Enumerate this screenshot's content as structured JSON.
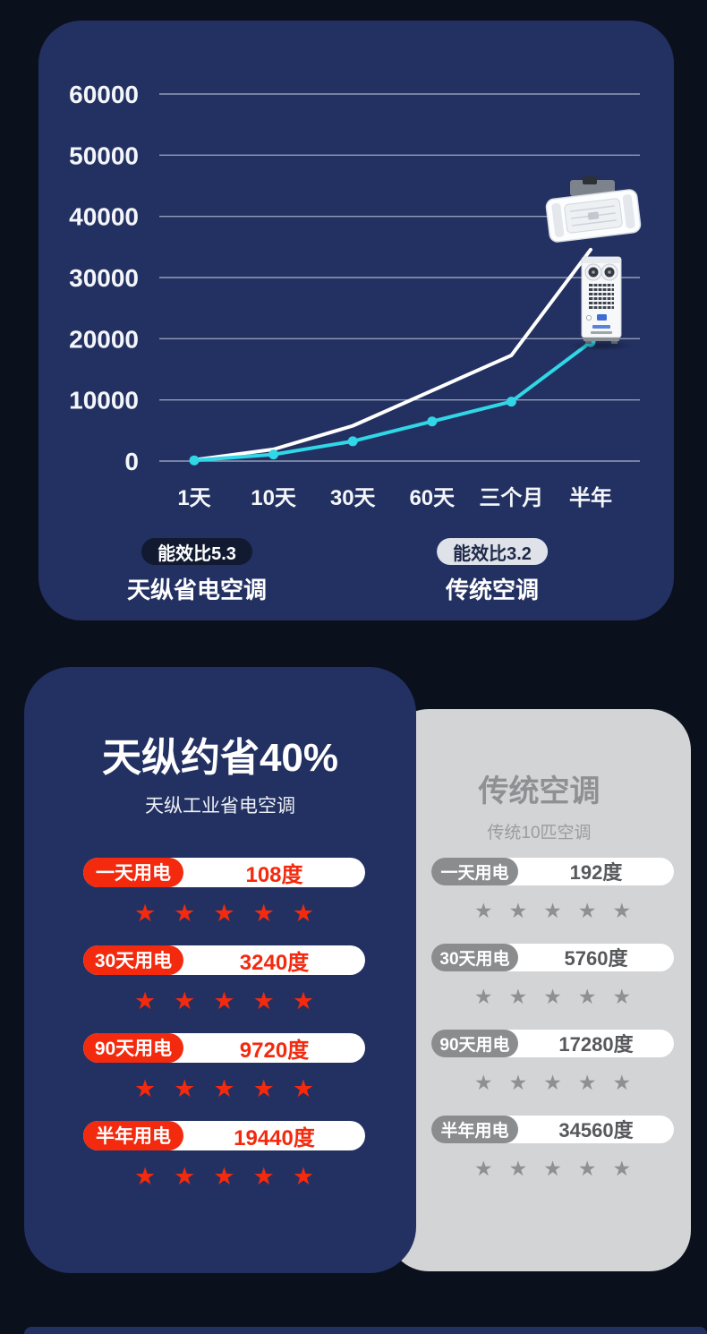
{
  "colors": {
    "page_background": "#0b101d",
    "card_navy": "#233162",
    "card_gray": "#d3d4d6",
    "accent_red": "#f32a0e",
    "accent_cyan": "#30d7e6",
    "line_white": "#ffffff"
  },
  "chart_data": {
    "type": "line",
    "title": "",
    "categories": [
      "1天",
      "10天",
      "30天",
      "60天",
      "三个月",
      "半年"
    ],
    "series": [
      {
        "name": "天纵省电空调",
        "efficiency_badge": "能效比5.3",
        "color": "#30d7e6",
        "markers": true,
        "values": [
          108,
          1080,
          3240,
          6480,
          9720,
          19440
        ]
      },
      {
        "name": "传统空调",
        "efficiency_badge": "能效比3.2",
        "color": "#ffffff",
        "markers": false,
        "values": [
          192,
          1920,
          5760,
          11520,
          17280,
          34560
        ]
      }
    ],
    "xlabel": "",
    "ylabel": "",
    "ylim": [
      0,
      60000
    ],
    "yticks": [
      0,
      10000,
      20000,
      30000,
      40000,
      50000,
      60000
    ],
    "grid": true,
    "legend_position": "bottom",
    "unit": "度"
  },
  "legend": [
    {
      "badge": "能效比5.3",
      "label": "天纵省电空调",
      "style": "dark"
    },
    {
      "badge": "能效比3.2",
      "label": "传统空调",
      "style": "light"
    }
  ],
  "comparison": {
    "left": {
      "title": "天纵约省40%",
      "subtitle": "天纵工业省电空调",
      "rows": [
        {
          "label": "一天用电",
          "value": "108度",
          "stars": 5
        },
        {
          "label": "30天用电",
          "value": "3240度",
          "stars": 5
        },
        {
          "label": "90天用电",
          "value": "9720度",
          "stars": 5
        },
        {
          "label": "半年用电",
          "value": "19440度",
          "stars": 5
        }
      ]
    },
    "right": {
      "title": "传统空调",
      "subtitle": "传统10匹空调",
      "rows": [
        {
          "label": "一天用电",
          "value": "192度",
          "stars": 5
        },
        {
          "label": "30天用电",
          "value": "5760度",
          "stars": 5
        },
        {
          "label": "90天用电",
          "value": "17280度",
          "stars": 5
        },
        {
          "label": "半年用电",
          "value": "34560度",
          "stars": 5
        }
      ]
    }
  },
  "icons": {
    "star": "★",
    "ceiling_ac": "ceiling-cassette-ac-unit",
    "cabinet_ac": "floor-cabinet-ac-unit"
  }
}
